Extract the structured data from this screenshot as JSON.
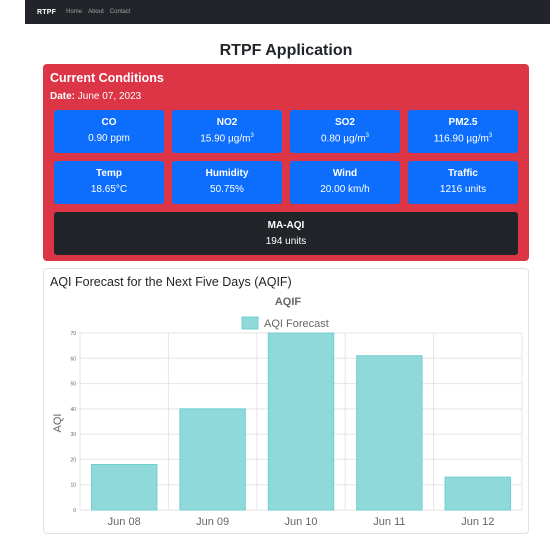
{
  "navbar": {
    "brand": "RTPF",
    "links": [
      "Home",
      "About",
      "Contact"
    ]
  },
  "page_title": "RTPF Application",
  "conditions": {
    "title": "Current Conditions",
    "date_label": "Date:",
    "date_value": "June 07, 2023",
    "tiles": [
      {
        "label": "CO",
        "value": "0.90 ppm"
      },
      {
        "label": "NO2",
        "value": "15.90 µg/m",
        "sup": "3"
      },
      {
        "label": "SO2",
        "value": "0.80 µg/m",
        "sup": "3"
      },
      {
        "label": "PM2.5",
        "value": "116.90 µg/m",
        "sup": "3"
      },
      {
        "label": "Temp",
        "value": "18.65°C"
      },
      {
        "label": "Humidity",
        "value": "50.75%"
      },
      {
        "label": "Wind",
        "value": "20.00 km/h"
      },
      {
        "label": "Traffic",
        "value": "1216 units"
      }
    ],
    "aqi": {
      "label": "MA-AQI",
      "value": "194 units"
    }
  },
  "forecast": {
    "title": "AQI Forecast for the Next Five Days (AQIF)"
  },
  "colors": {
    "navbar": "#212529",
    "conditions_bg": "#dc3545",
    "tile_bg": "#0d6efd",
    "aqi_bg": "#212529",
    "bar_fill": "#90d9da",
    "bar_stroke": "#6fcfd1"
  },
  "chart_data": {
    "type": "bar",
    "title": "AQIF",
    "legend": "AQI Forecast",
    "legend_position": "top",
    "ylabel": "AQI",
    "xlabel": "",
    "categories": [
      "Jun 08",
      "Jun 09",
      "Jun 10",
      "Jun 11",
      "Jun 12"
    ],
    "series": [
      {
        "name": "AQI Forecast",
        "values": [
          18,
          40,
          70,
          61,
          13
        ]
      }
    ],
    "ylim": [
      0,
      70
    ],
    "yticks": [
      0,
      10,
      20,
      30,
      40,
      50,
      60,
      70
    ],
    "grid": true
  }
}
